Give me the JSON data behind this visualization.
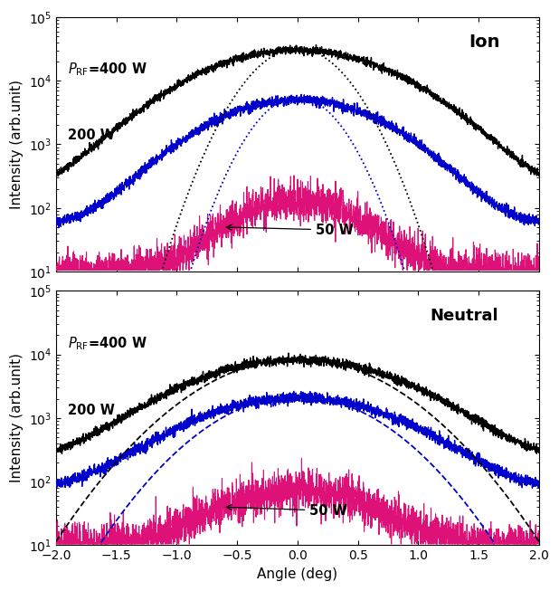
{
  "title_top": "Ion",
  "title_bottom": "Neutral",
  "xlabel": "Angle (deg)",
  "ylabel": "Intensity (arb.unit)",
  "xlim": [
    -2,
    2
  ],
  "ylim": [
    10,
    100000
  ],
  "colors": {
    "400W": "#000000",
    "200W": "#0000CC",
    "50W": "#DD1177"
  },
  "seed": 42,
  "ion_400_peak": 30000,
  "ion_400_sigma": 0.62,
  "ion_400_floor": 180,
  "ion_200_peak": 5000,
  "ion_200_sigma": 0.55,
  "ion_200_floor": 55,
  "ion_50_peak": 120,
  "ion_50_sigma": 0.42,
  "ion_50_floor": 10,
  "neut_400_peak": 8000,
  "neut_400_sigma": 0.68,
  "neut_400_floor": 200,
  "neut_200_peak": 2000,
  "neut_200_sigma": 0.65,
  "neut_200_floor": 75,
  "neut_50_peak": 65,
  "neut_50_sigma": 0.5,
  "neut_50_floor": 10,
  "fit_ion_400_sigma": 0.28,
  "fit_ion_400_peak": 32000,
  "fit_ion_200_sigma": 0.25,
  "fit_ion_200_peak": 5500,
  "fit_neut_400_sigma": 0.55,
  "fit_neut_400_peak": 8500,
  "fit_neut_200_sigma": 0.5,
  "fit_neut_200_peak": 2200
}
